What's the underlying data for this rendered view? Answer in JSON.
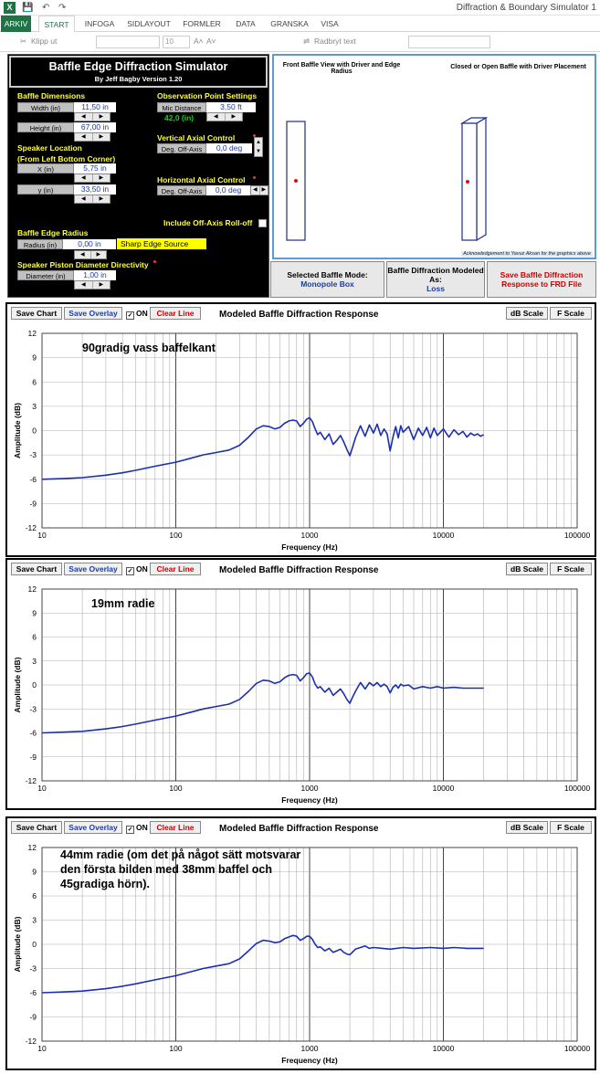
{
  "app": {
    "title": "Diffraction & Boundary Simulator 1",
    "file_icon": "X",
    "qa_save": "💾",
    "qa_undo": "↶",
    "qa_redo": "↷"
  },
  "ribbon": {
    "tabs": [
      "ARKIV",
      "START",
      "INFOGA",
      "SIDLAYOUT",
      "FORMLER",
      "DATA",
      "GRANSKA",
      "VISA"
    ],
    "clip": "Klipp ut",
    "font_size": "10",
    "wrap": "Radbryt text"
  },
  "panel": {
    "title": "Baffle Edge Diffraction Simulator",
    "subtitle": "By Jeff Bagby Version 1.20",
    "baffle_dimensions": "Baffle Dimensions",
    "width_label": "Width (in)",
    "width_value": "11,50 in",
    "height_label": "Height (in)",
    "height_value": "67,00 in",
    "speaker_location": "Speaker Location",
    "from_corner": "(From Left Bottom Corner)",
    "x_label": "X (in)",
    "x_value": "5,75 in",
    "y_label": "y (in)",
    "y_value": "33,50 in",
    "edge_radius": "Baffle Edge Radius",
    "radius_label": "Radius (in)",
    "radius_value": "0,00 in",
    "sharp_edge": "Sharp Edge Source",
    "piston": "Speaker Piston Diameter Directivity",
    "diameter_label": "Diameter (in)",
    "diameter_value": "1,00 in",
    "obs_settings": "Observation Point Settings",
    "mic_label": "Mic Distance",
    "mic_value": "3,50 ft",
    "mic_in": "42,0 (in)",
    "vertical": "Vertical Axial Control",
    "vert_label": "Deg. Off-Axis",
    "vert_value": "0,0 deg",
    "horizontal": "Horizontal Axial Control",
    "horz_label": "Deg. Off-Axis",
    "horz_value": "0,0 deg",
    "rolloff": "Include Off-Axis Roll-off"
  },
  "graphics": {
    "front_title": "Front Baffle View with Driver and Edge Radius",
    "closed_title": "Closed or Open Baffle with Driver Placement",
    "ack": "Acknowledgement to Yavuz Aksan for the graphics above"
  },
  "modes": {
    "selected_label": "Selected Baffle Mode:",
    "selected_value": "Monopole Box",
    "modeled_label": "Baffle Diffraction Modeled As:",
    "modeled_value": "Loss",
    "save_frd": "Save Baffle Diffraction Response to FRD File"
  },
  "toolbar": {
    "save_chart": "Save Chart",
    "save_overlay": "Save Overlay",
    "on": "ON",
    "clear": "Clear Line",
    "db_scale": "dB Scale",
    "f_scale": "F Scale",
    "check": "✓"
  },
  "colors": {
    "curve": "#1a2fb0",
    "accent_yellow": "#ffff33",
    "excel_green": "#217346"
  },
  "chart_data": [
    {
      "type": "line",
      "title": "Modeled Baffle Diffraction Response",
      "annotation": "90gradig vass baffelkant",
      "xlabel": "Frequency (Hz)",
      "ylabel": "Amplitude (dB)",
      "x_scale": "log",
      "xlim": [
        10,
        100000
      ],
      "ylim": [
        -12,
        12
      ],
      "yticks": [
        12,
        9,
        6,
        3,
        0,
        -3,
        -6,
        -9,
        -12
      ],
      "xticks": [
        "10",
        "100",
        "1000",
        "10000",
        "100000"
      ],
      "grid": true,
      "x": [
        10,
        15,
        20,
        30,
        40,
        50,
        70,
        100,
        130,
        160,
        200,
        250,
        300,
        350,
        400,
        450,
        500,
        550,
        600,
        650,
        700,
        750,
        800,
        850,
        900,
        950,
        1000,
        1050,
        1100,
        1150,
        1200,
        1300,
        1400,
        1500,
        1600,
        1700,
        1800,
        1900,
        2000,
        2100,
        2200,
        2400,
        2600,
        2800,
        3000,
        3200,
        3400,
        3600,
        3800,
        4000,
        4200,
        4400,
        4600,
        4800,
        5000,
        5500,
        6000,
        6500,
        7000,
        7500,
        8000,
        8500,
        9000,
        10000,
        11000,
        12000,
        13000,
        14000,
        15000,
        16000,
        17000,
        18000,
        19000,
        20000
      ],
      "y": [
        -6,
        -5.9,
        -5.8,
        -5.5,
        -5.2,
        -4.9,
        -4.4,
        -3.9,
        -3.4,
        -3,
        -2.7,
        -2.4,
        -1.8,
        -0.8,
        0.2,
        0.6,
        0.5,
        0.2,
        0.4,
        0.9,
        1.2,
        1.3,
        1.2,
        0.5,
        0.9,
        1.4,
        1.6,
        1.1,
        0.2,
        -0.5,
        -0.2,
        -1.1,
        -0.4,
        -1.7,
        -1.2,
        -0.6,
        -1.4,
        -2.3,
        -3.1,
        -2,
        -0.9,
        0.6,
        -0.7,
        0.7,
        -0.3,
        0.8,
        -0.6,
        0.2,
        -0.4,
        -2.5,
        -0.8,
        0.5,
        -0.9,
        0.6,
        -0.2,
        0.5,
        -1.1,
        0.3,
        -0.6,
        0.4,
        -0.9,
        0.3,
        -0.6,
        0.2,
        -0.8,
        0.1,
        -0.5,
        -0.1,
        -0.8,
        -0.3,
        -0.6,
        -0.4,
        -0.7,
        -0.5
      ]
    },
    {
      "type": "line",
      "title": "Modeled Baffle Diffraction Response",
      "annotation": "19mm radie",
      "xlabel": "Frequency (Hz)",
      "ylabel": "Amplitude (dB)",
      "x_scale": "log",
      "xlim": [
        10,
        100000
      ],
      "ylim": [
        -12,
        12
      ],
      "yticks": [
        12,
        9,
        6,
        3,
        0,
        -3,
        -6,
        -9,
        -12
      ],
      "xticks": [
        "10",
        "100",
        "1000",
        "10000",
        "100000"
      ],
      "grid": true,
      "x": [
        10,
        15,
        20,
        30,
        40,
        50,
        70,
        100,
        130,
        160,
        200,
        250,
        300,
        350,
        400,
        450,
        500,
        550,
        600,
        650,
        700,
        750,
        800,
        850,
        900,
        950,
        1000,
        1050,
        1100,
        1150,
        1200,
        1300,
        1400,
        1500,
        1600,
        1700,
        1800,
        1900,
        2000,
        2100,
        2200,
        2400,
        2600,
        2800,
        3000,
        3200,
        3400,
        3600,
        3800,
        4000,
        4200,
        4400,
        4600,
        4800,
        5000,
        5500,
        6000,
        7000,
        8000,
        9000,
        10000,
        12000,
        14000,
        16000,
        18000,
        20000
      ],
      "y": [
        -6,
        -5.9,
        -5.8,
        -5.5,
        -5.2,
        -4.9,
        -4.4,
        -3.9,
        -3.4,
        -3,
        -2.7,
        -2.4,
        -1.8,
        -0.8,
        0.2,
        0.6,
        0.5,
        0.2,
        0.4,
        0.9,
        1.2,
        1.3,
        1.2,
        0.5,
        0.9,
        1.4,
        1.5,
        1,
        0.1,
        -0.4,
        -0.2,
        -0.9,
        -0.4,
        -1.3,
        -0.9,
        -0.5,
        -1.1,
        -1.8,
        -2.3,
        -1.5,
        -0.8,
        0.3,
        -0.5,
        0.3,
        -0.1,
        0.3,
        -0.2,
        0.1,
        -0.2,
        -1,
        -0.3,
        0,
        -0.4,
        0.1,
        -0.1,
        0,
        -0.5,
        -0.2,
        -0.4,
        -0.2,
        -0.4,
        -0.3,
        -0.4,
        -0.4,
        -0.4,
        -0.4
      ]
    },
    {
      "type": "line",
      "title": "Modeled Baffle Diffraction Response",
      "annotation": "44mm radie (om det på något sätt motsvarar den första bilden med 38mm baffel och 45gradiga hörn).",
      "annotation_lines": [
        "44mm radie (om det på något sätt motsvarar",
        "den första bilden med 38mm baffel och",
        "45gradiga hörn)."
      ],
      "xlabel": "Frequency (Hz)",
      "ylabel": "Amplitude (dB)",
      "x_scale": "log",
      "xlim": [
        10,
        100000
      ],
      "ylim": [
        -12,
        12
      ],
      "yticks": [
        12,
        9,
        6,
        3,
        0,
        -3,
        -6,
        -9,
        -12
      ],
      "xticks": [
        "10",
        "100",
        "1000",
        "10000",
        "100000"
      ],
      "grid": true,
      "x": [
        10,
        15,
        20,
        30,
        40,
        50,
        70,
        100,
        130,
        160,
        200,
        250,
        300,
        350,
        400,
        450,
        500,
        550,
        600,
        650,
        700,
        750,
        800,
        850,
        900,
        950,
        1000,
        1050,
        1100,
        1150,
        1200,
        1300,
        1400,
        1500,
        1600,
        1700,
        1800,
        1900,
        2000,
        2200,
        2400,
        2600,
        2800,
        3000,
        3500,
        4000,
        5000,
        6000,
        8000,
        10000,
        12000,
        15000,
        20000
      ],
      "y": [
        -6,
        -5.9,
        -5.8,
        -5.5,
        -5.2,
        -4.9,
        -4.4,
        -3.9,
        -3.4,
        -3,
        -2.7,
        -2.4,
        -1.8,
        -0.8,
        0.1,
        0.5,
        0.4,
        0.2,
        0.3,
        0.7,
        0.9,
        1.1,
        1,
        0.5,
        0.7,
        1,
        1,
        0.6,
        0,
        -0.4,
        -0.3,
        -0.8,
        -0.5,
        -1,
        -0.8,
        -0.6,
        -1,
        -1.2,
        -1.3,
        -0.6,
        -0.4,
        -0.2,
        -0.5,
        -0.4,
        -0.5,
        -0.6,
        -0.4,
        -0.5,
        -0.4,
        -0.5,
        -0.4,
        -0.5,
        -0.5
      ]
    }
  ]
}
